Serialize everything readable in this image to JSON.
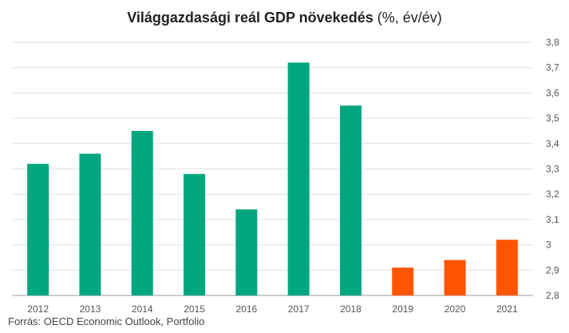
{
  "chart_data": {
    "type": "bar",
    "title": "Világgazdasági reál GDP növekedés",
    "subtitle": "(%, év/év)",
    "categories": [
      "2012",
      "2013",
      "2014",
      "2015",
      "2016",
      "2017",
      "2018",
      "2019",
      "2020",
      "2021"
    ],
    "values": [
      3.32,
      3.36,
      3.45,
      3.28,
      3.14,
      3.72,
      3.55,
      2.91,
      2.94,
      3.02
    ],
    "status": [
      "actual",
      "actual",
      "actual",
      "actual",
      "actual",
      "actual",
      "actual",
      "forecast",
      "forecast",
      "forecast"
    ],
    "colors": {
      "actual": "#00a67e",
      "forecast": "#ff5500",
      "grid": "#e0e0e0",
      "axis": "#999999"
    },
    "ylim": [
      2.8,
      3.8
    ],
    "yticks": [
      "2,8",
      "2,9",
      "3",
      "3,1",
      "3,2",
      "3,3",
      "3,4",
      "3,5",
      "3,6",
      "3,7",
      "3,8"
    ],
    "ytick_values": [
      2.8,
      2.9,
      3.0,
      3.1,
      3.2,
      3.3,
      3.4,
      3.5,
      3.6,
      3.7,
      3.8
    ],
    "y_axis_position": "right",
    "grid": true,
    "legend": "none",
    "xlabel": "",
    "ylabel": ""
  },
  "source": "Forrás: OECD Economic Outlook, Portfolio"
}
